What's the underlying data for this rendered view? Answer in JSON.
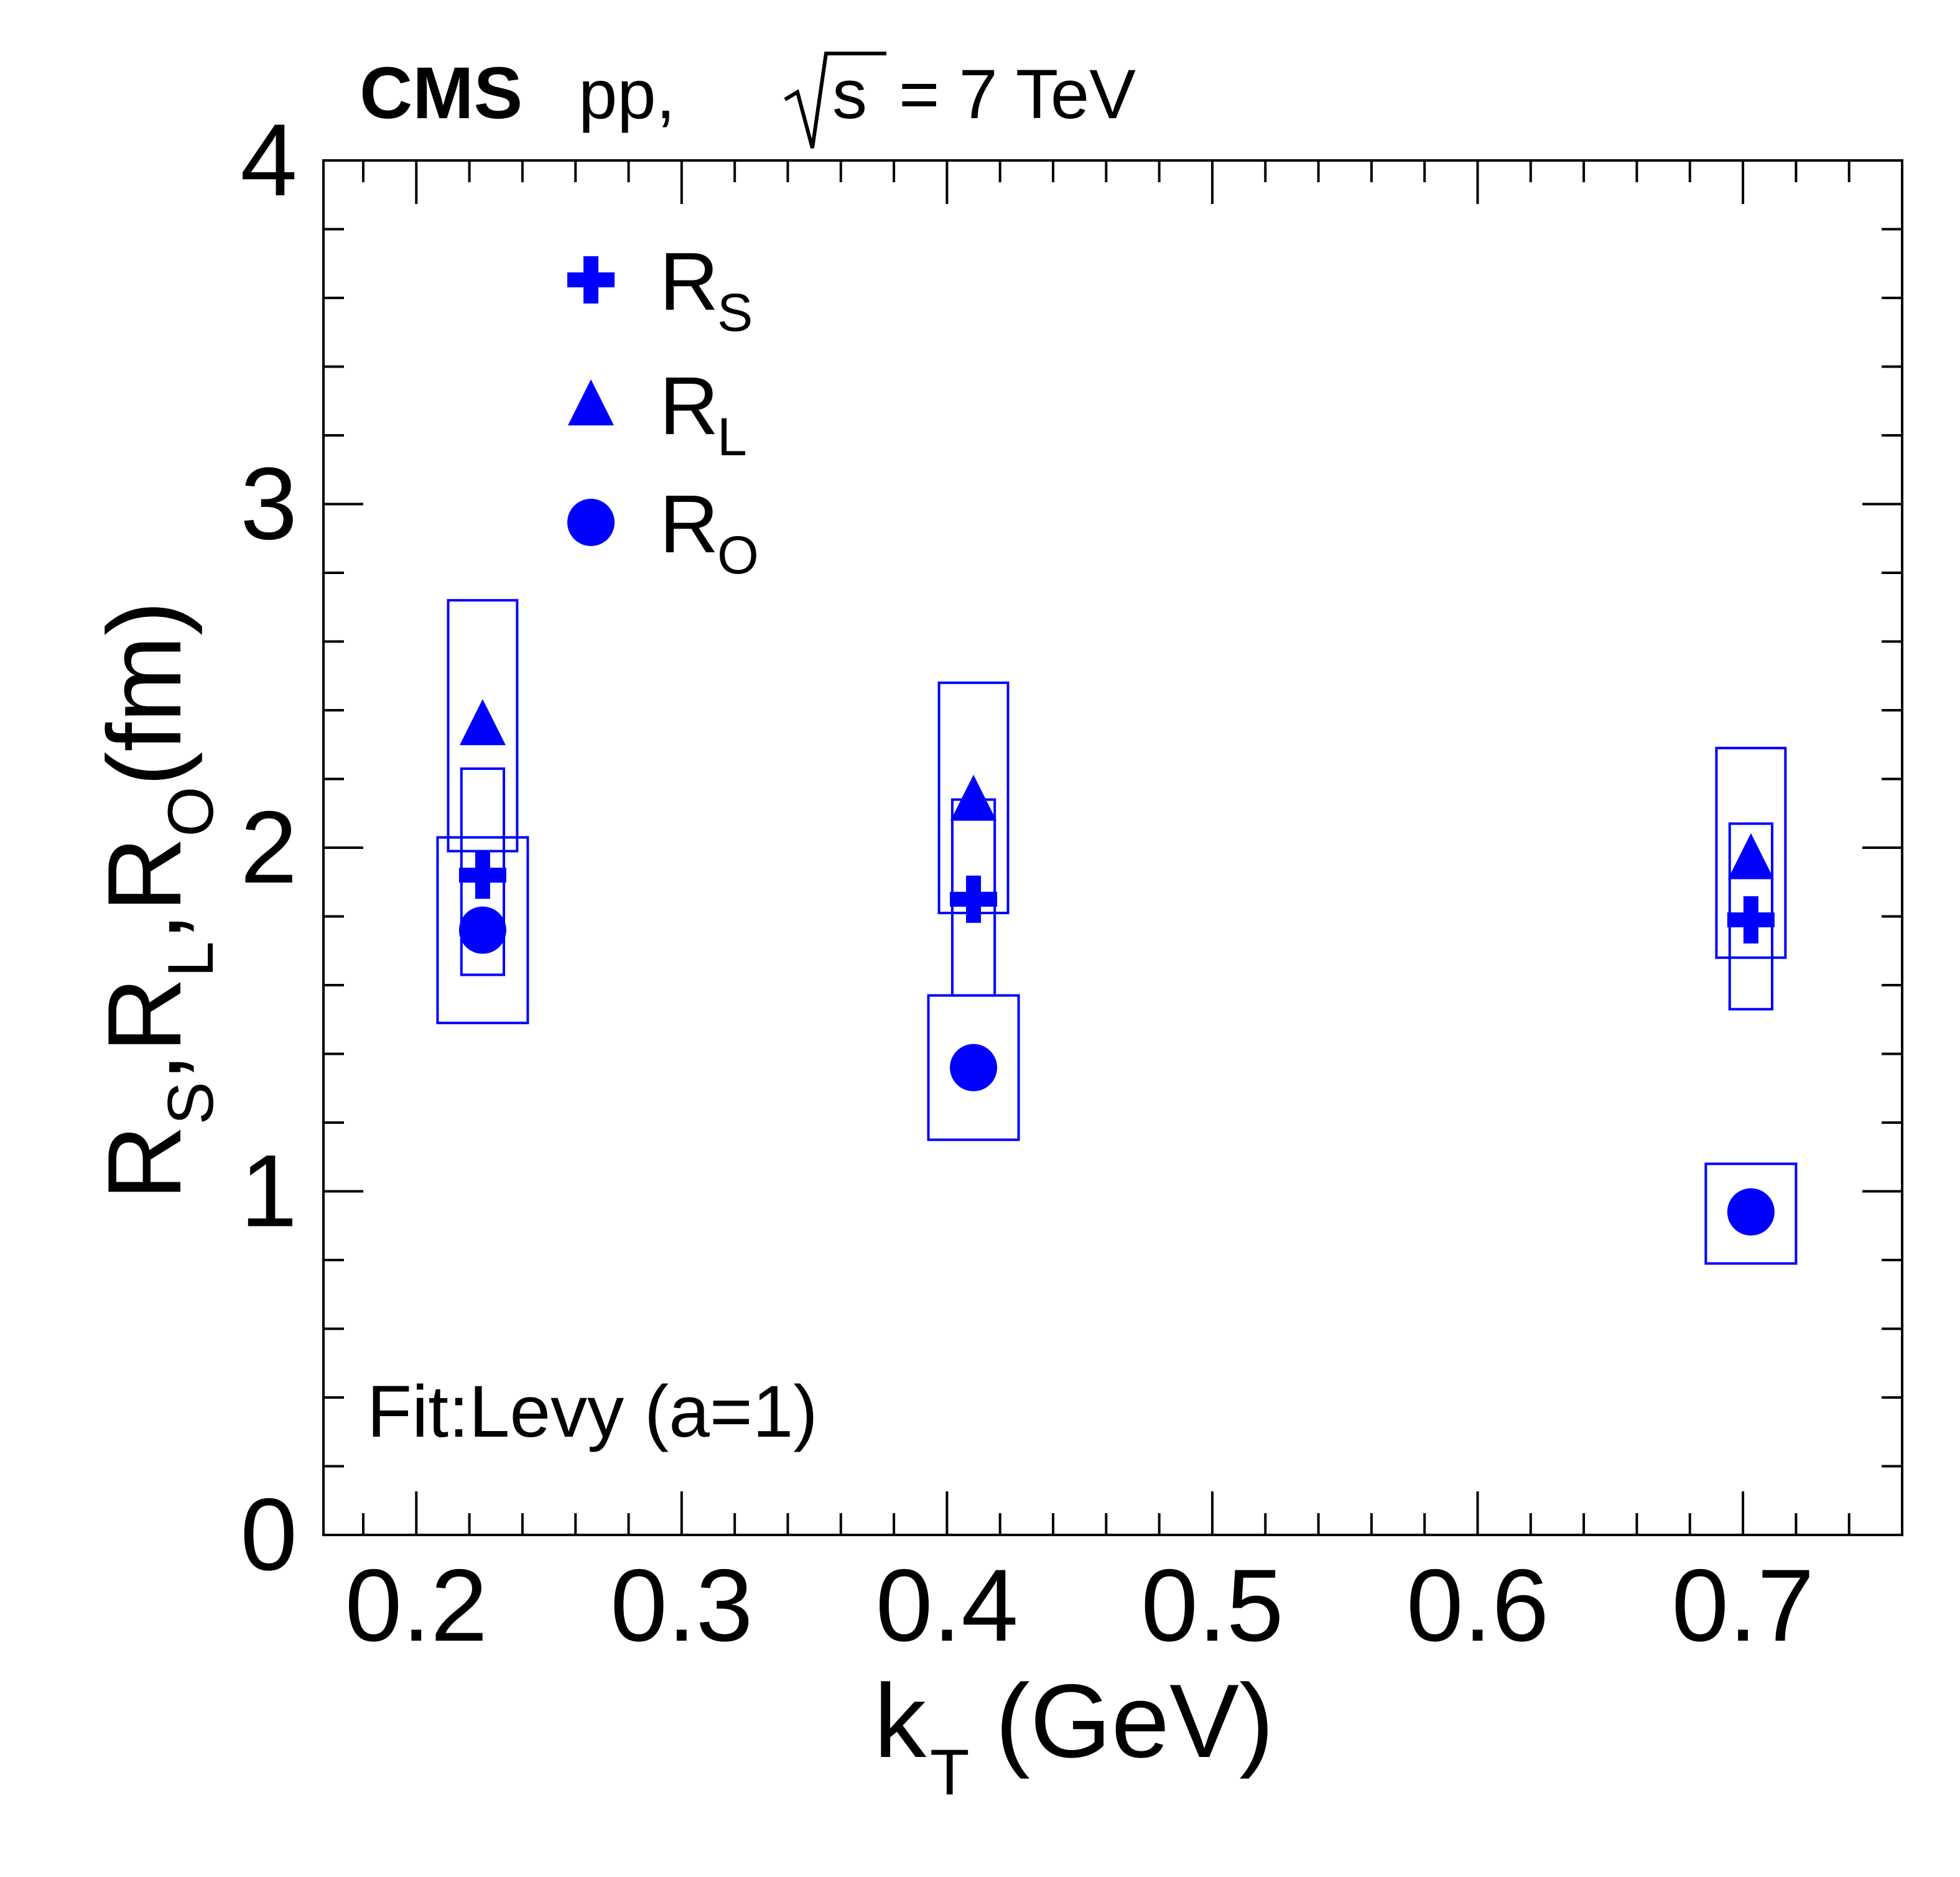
{
  "header": {
    "experiment": "CMS",
    "system": "pp,",
    "energy_sqrt_symbol": "√",
    "energy_var": "s",
    "energy_value": "= 7 TeV"
  },
  "annotation": "Fit:Levy (a=1)",
  "colors": {
    "series": "#0000ff",
    "axis": "#000000",
    "background": "#ffffff"
  },
  "chart_data": {
    "type": "scatter",
    "title": "",
    "xlabel": {
      "main": "k",
      "sub": "T",
      "unit": "(GeV)"
    },
    "ylabel": {
      "parts": [
        {
          "main": "R",
          "sub": "S"
        },
        {
          "main": "R",
          "sub": "L"
        },
        {
          "main": "R",
          "sub": "O"
        }
      ],
      "unit": "(fm)"
    },
    "xlim": [
      0.165,
      0.76
    ],
    "ylim": [
      0,
      4
    ],
    "xticks": [
      0.2,
      0.3,
      0.4,
      0.5,
      0.6,
      0.7
    ],
    "xtick_labels": [
      "0.2",
      "0.3",
      "0.4",
      "0.5",
      "0.6",
      "0.7"
    ],
    "yticks": [
      0,
      1,
      2,
      3,
      4
    ],
    "ytick_labels": [
      "0",
      "1",
      "2",
      "3",
      "4"
    ],
    "legend_position": "top-left",
    "series": [
      {
        "name": "R_S",
        "label_main": "R",
        "label_sub": "S",
        "marker": "cross",
        "x": [
          0.225,
          0.41,
          0.703
        ],
        "y": [
          1.92,
          1.85,
          1.79
        ],
        "syst_low": [
          1.63,
          1.57,
          1.53
        ],
        "syst_high": [
          2.23,
          2.14,
          2.07
        ],
        "syst_halfwidth": 0.008
      },
      {
        "name": "R_L",
        "label_main": "R",
        "label_sub": "L",
        "marker": "triangle",
        "x": [
          0.225,
          0.41,
          0.703
        ],
        "y": [
          2.36,
          2.14,
          1.97
        ],
        "syst_low": [
          1.99,
          1.81,
          1.68
        ],
        "syst_high": [
          2.72,
          2.48,
          2.29
        ],
        "syst_halfwidth": 0.013
      },
      {
        "name": "R_O",
        "label_main": "R",
        "label_sub": "O",
        "marker": "circle",
        "x": [
          0.225,
          0.41,
          0.703
        ],
        "y": [
          1.76,
          1.36,
          0.94
        ],
        "syst_low": [
          1.49,
          1.15,
          0.79
        ],
        "syst_high": [
          2.03,
          1.57,
          1.08
        ],
        "syst_halfwidth": 0.017
      }
    ]
  }
}
